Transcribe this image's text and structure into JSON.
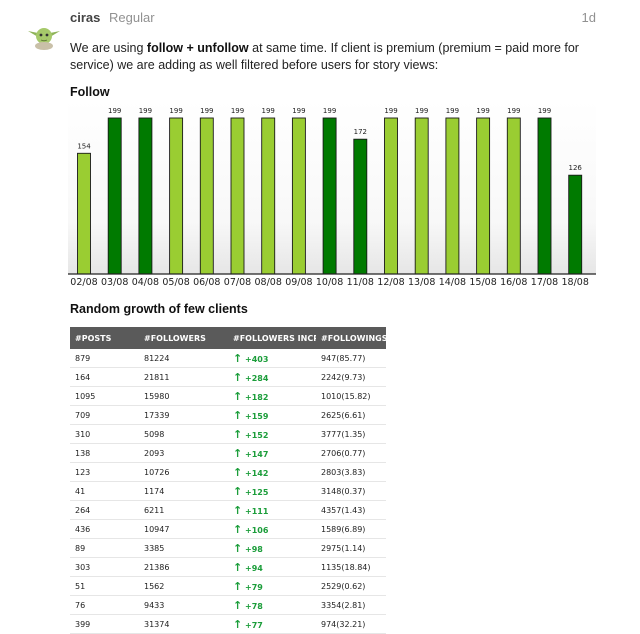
{
  "post": {
    "username": "ciras",
    "role": "Regular",
    "date": "1d",
    "avatar_icon": "yoda-avatar-icon",
    "intro": {
      "before": "We are using ",
      "bold": "follow + unfollow",
      "after": " at same time. If client is premium (premium = paid more for service) we are adding as well filtered before users for story views:"
    },
    "follow_title": "Follow",
    "growth_title": "Random growth of few clients"
  },
  "chart_data": {
    "type": "bar",
    "categories": [
      "02/08",
      "03/08",
      "04/08",
      "05/08",
      "06/08",
      "07/08",
      "08/08",
      "09/08",
      "10/08",
      "11/08",
      "12/08",
      "13/08",
      "14/08",
      "15/08",
      "16/08",
      "17/08",
      "18/08"
    ],
    "values": [
      154,
      199,
      199,
      199,
      199,
      199,
      199,
      199,
      199,
      172,
      199,
      199,
      199,
      199,
      199,
      199,
      126
    ],
    "bar_colors": [
      "#9acd32",
      "#007a00",
      "#007a00",
      "#9acd32",
      "#9acd32",
      "#9acd32",
      "#9acd32",
      "#9acd32",
      "#007a00",
      "#007a00",
      "#9acd32",
      "#9acd32",
      "#9acd32",
      "#9acd32",
      "#9acd32",
      "#007a00",
      "#007a00"
    ],
    "ylim": [
      0,
      199
    ],
    "grid": false,
    "data_labels": true
  },
  "growth_table": {
    "headers": [
      "#POSTS",
      "#FOLLOWERS",
      "#FOLLOWERS INCREASE",
      "#FOLLOWINGS"
    ],
    "arrow_icon": "up-arrow-icon",
    "rows": [
      [
        "879",
        "81224",
        "+403",
        "947(85.77)"
      ],
      [
        "164",
        "21811",
        "+284",
        "2242(9.73)"
      ],
      [
        "1095",
        "15980",
        "+182",
        "1010(15.82)"
      ],
      [
        "709",
        "17339",
        "+159",
        "2625(6.61)"
      ],
      [
        "310",
        "5098",
        "+152",
        "3777(1.35)"
      ],
      [
        "138",
        "2093",
        "+147",
        "2706(0.77)"
      ],
      [
        "123",
        "10726",
        "+142",
        "2803(3.83)"
      ],
      [
        "41",
        "1174",
        "+125",
        "3148(0.37)"
      ],
      [
        "264",
        "6211",
        "+111",
        "4357(1.43)"
      ],
      [
        "436",
        "10947",
        "+106",
        "1589(6.89)"
      ],
      [
        "89",
        "3385",
        "+98",
        "2975(1.14)"
      ],
      [
        "303",
        "21386",
        "+94",
        "1135(18.84)"
      ],
      [
        "51",
        "1562",
        "+79",
        "2529(0.62)"
      ],
      [
        "76",
        "9433",
        "+78",
        "3354(2.81)"
      ],
      [
        "399",
        "31374",
        "+77",
        "974(32.21)"
      ]
    ]
  }
}
